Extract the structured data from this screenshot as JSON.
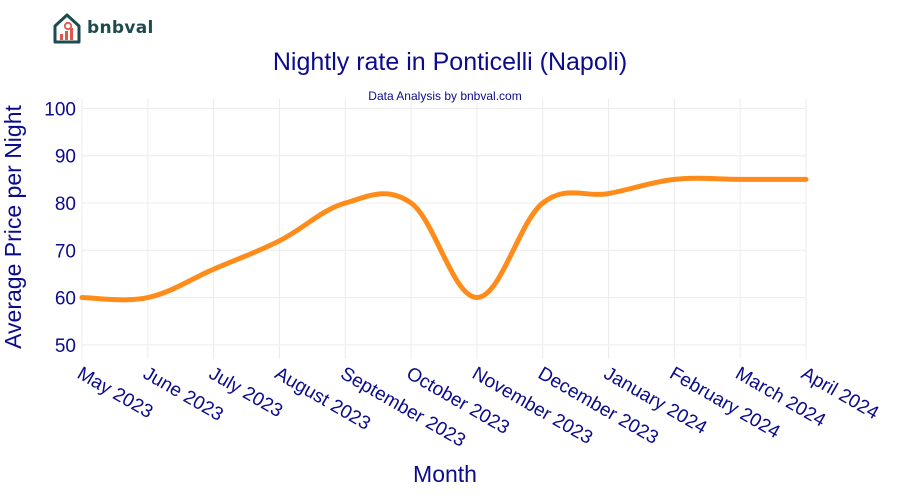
{
  "brand": {
    "name": "bnbval",
    "logo_icon": "house-chart-icon"
  },
  "colors": {
    "line": "#ff8c1a",
    "text": "#0b0b8c",
    "grid": "#ececec"
  },
  "chart_data": {
    "type": "line",
    "title": "Nightly rate in Ponticelli (Napoli)",
    "subtitle": "Data Analysis by bnbval.com",
    "xlabel": "Month",
    "ylabel": "Average Price per Night",
    "categories": [
      "May 2023",
      "June 2023",
      "July 2023",
      "August 2023",
      "September 2023",
      "October 2023",
      "November 2023",
      "December 2023",
      "January 2024",
      "February 2024",
      "March 2024",
      "April 2024"
    ],
    "series": [
      {
        "values": [
          60,
          60,
          66,
          72,
          80,
          80,
          60,
          80,
          82,
          85,
          85,
          85
        ]
      }
    ],
    "ylim": [
      47,
      102
    ],
    "yticks": [
      50,
      60,
      70,
      80,
      90,
      100
    ],
    "grid": true,
    "legend": "none"
  }
}
